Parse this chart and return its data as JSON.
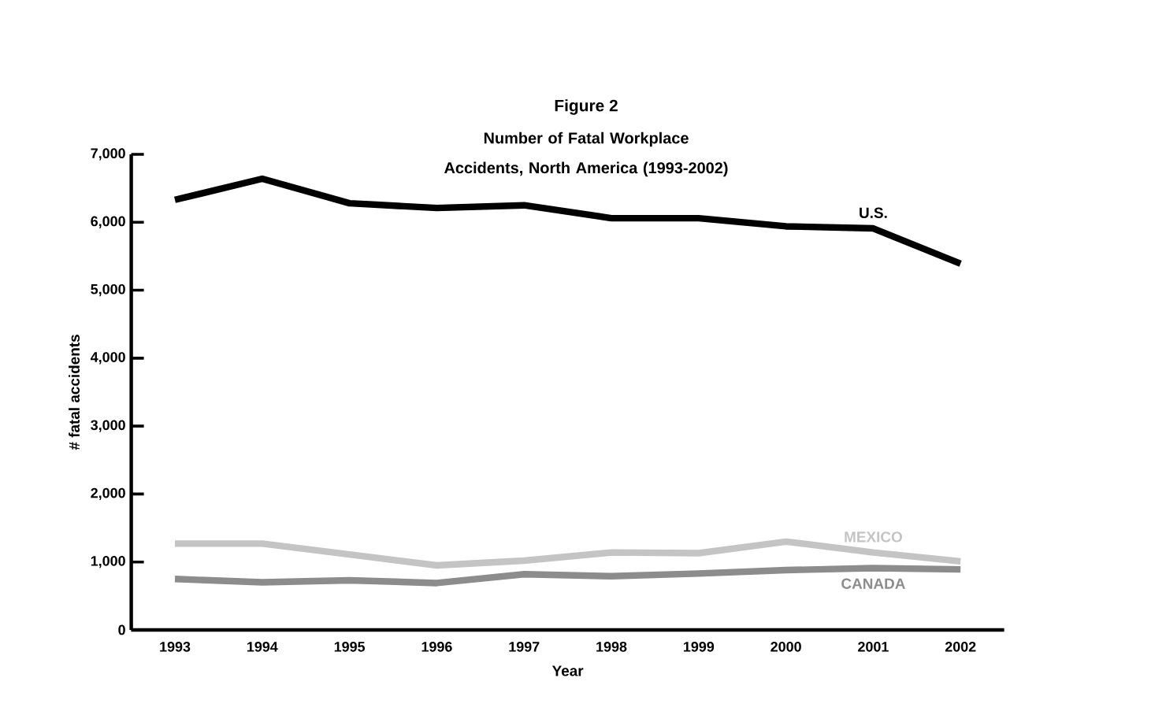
{
  "chart_data": {
    "type": "line",
    "title": "Figure 2",
    "subtitle": "Number of Fatal Workplace Accidents, North America (1993-2002)",
    "xlabel": "Year",
    "ylabel": "# fatal accidents",
    "categories": [
      "1993",
      "1994",
      "1995",
      "1996",
      "1997",
      "1998",
      "1999",
      "2000",
      "2001",
      "2002"
    ],
    "series": [
      {
        "name": "U.S.",
        "color": "#000000",
        "values": [
          6330,
          6640,
          6280,
          6210,
          6250,
          6060,
          6060,
          5940,
          5910,
          5390
        ]
      },
      {
        "name": "MEXICO",
        "color": "#c4c4c4",
        "values": [
          1270,
          1270,
          1110,
          950,
          1020,
          1140,
          1130,
          1300,
          1140,
          1010
        ]
      },
      {
        "name": "CANADA",
        "color": "#8c8c8c",
        "values": [
          750,
          700,
          730,
          690,
          820,
          790,
          830,
          880,
          910,
          890
        ]
      }
    ],
    "ylim": [
      0,
      7000
    ],
    "yticks": [
      0,
      {
        "value": 1000,
        "label": "1,000"
      },
      {
        "value": 2000,
        "label": "2,000"
      },
      {
        "value": 3000,
        "label": "3,000"
      },
      {
        "value": 4000,
        "label": "4,000"
      },
      {
        "value": 5000,
        "label": "5,000"
      },
      {
        "value": 6000,
        "label": "6,000"
      },
      {
        "value": 7000,
        "label": "7,000"
      }
    ],
    "grid": false,
    "marker": "none",
    "line_style": "solid"
  }
}
